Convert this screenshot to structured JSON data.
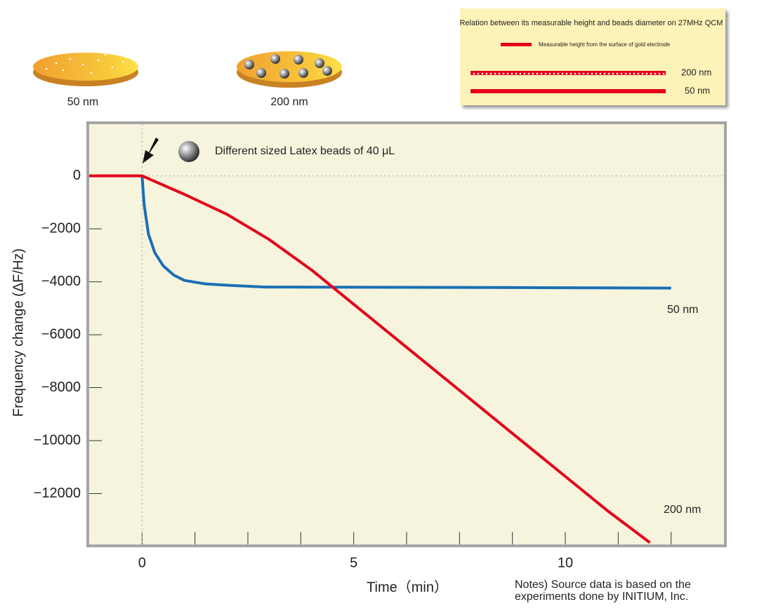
{
  "chart_data": {
    "type": "line",
    "x_label": "Time（min）",
    "y_label": "Frequency change (ΔF/Hz)",
    "annotation": "Different sized Latex beads of 40 μL",
    "notes": "Notes) Source data is based on the experiments done by INITIUM, Inc.",
    "illustration_labels": [
      "50 nm",
      "200 nm"
    ],
    "inset": {
      "title": "Relation between its measurable height and beads diameter on 27MHz QCM",
      "caption": "Measurable height from the surface of gold electrode",
      "labels": [
        "200 nm",
        "50 nm"
      ]
    },
    "xlim": [
      -1.25,
      13.75
    ],
    "ylim": [
      -13920,
      1950
    ],
    "xticks": [
      0,
      5,
      10
    ],
    "xminorticks": [
      1.25,
      2.5,
      3.75,
      6.25,
      7.5,
      8.75,
      11.25,
      12.5
    ],
    "yticks": [
      0,
      {
        "value": -2000,
        "label": "−2000"
      },
      {
        "value": -4000,
        "label": "−4000"
      },
      {
        "value": -6000,
        "label": "−6000"
      },
      {
        "value": -8000,
        "label": "−8000"
      },
      {
        "value": -10000,
        "label": "−10000"
      },
      {
        "value": -12000,
        "label": "−12000"
      }
    ],
    "series": [
      {
        "name": "50 nm",
        "color": "#1a6fb5",
        "x": [
          0,
          0.05,
          0.15,
          0.3,
          0.5,
          0.75,
          1,
          1.5,
          2,
          2.9,
          6,
          9,
          12.5
        ],
        "values": [
          0,
          -1100,
          -2200,
          -2900,
          -3400,
          -3750,
          -3950,
          -4080,
          -4130,
          -4200,
          -4210,
          -4220,
          -4240
        ]
      },
      {
        "name": "200 nm",
        "color": "#e3001b",
        "x": [
          -1.25,
          0,
          1,
          2,
          3,
          4,
          5,
          6,
          7,
          8,
          9,
          10,
          11,
          12
        ],
        "values": [
          0,
          0,
          -700,
          -1450,
          -2400,
          -3550,
          -4850,
          -6150,
          -7450,
          -8750,
          -10050,
          -11350,
          -12650,
          -13850
        ]
      }
    ]
  }
}
